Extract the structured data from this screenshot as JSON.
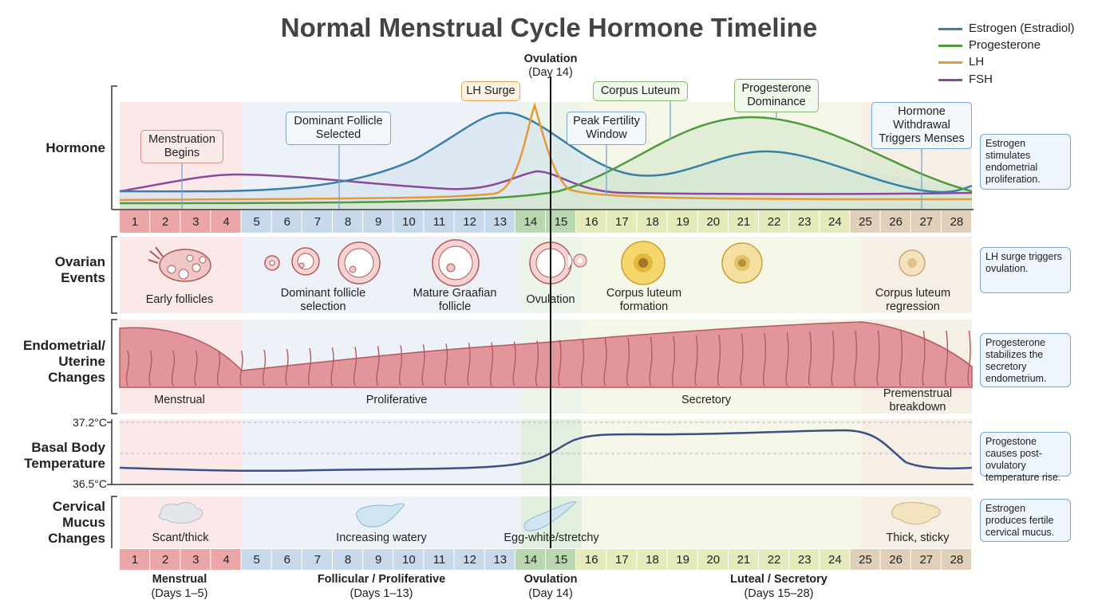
{
  "title": "Normal Menstrual Cycle Hormone Timeline",
  "legend": [
    {
      "name": "Estrogen (Estradiol)",
      "color": "#3a7fa6"
    },
    {
      "name": "Progesterone",
      "color": "#4f9a3d"
    },
    {
      "name": "LH",
      "color": "#e59a3a"
    },
    {
      "name": "FSH",
      "color": "#8a4a9c"
    }
  ],
  "ovulation_header": {
    "title": "Ovulation",
    "sub": "(Day 14)"
  },
  "row_labels": {
    "hormone": "Hormone",
    "ovarian_1": "Ovarian",
    "ovarian_2": "Events",
    "endo_1": "Endometrial/",
    "endo_2": "Uterine",
    "endo_3": "Changes",
    "bbt_1": "Basal Body",
    "bbt_2": "Temperature",
    "mucus_1": "Cervical",
    "mucus_2": "Mucus",
    "mucus_3": "Changes"
  },
  "days": [
    1,
    2,
    3,
    4,
    5,
    6,
    7,
    8,
    9,
    10,
    11,
    12,
    13,
    14,
    15,
    16,
    17,
    18,
    19,
    20,
    21,
    22,
    23,
    24,
    25,
    26,
    27,
    28
  ],
  "day_colors": {
    "menstrual": "#eba7a7",
    "follicular": "#c9d9ec",
    "ovulation": "#b8d6b0",
    "luteal": "#e4eab9",
    "premenstrual": "#e0d0ba"
  },
  "hormone_callouts": {
    "menstruation": "Menstruation Begins",
    "dominant": "Dominant Follicle Selected",
    "lh_surge": "LH Surge",
    "peak_fertility": "Peak Fertility Window",
    "corpus_luteum": "Corpus Luteum",
    "prog_dominance": "Progesterone Dominance",
    "withdrawal": "Hormone Withdrawal Triggers Menses"
  },
  "ovarian_captions": {
    "early": "Early follicles",
    "dominant": "Dominant follicle selection",
    "graafian": "Mature Graafian follicle",
    "ovulation": "Ovulation",
    "cl_formation": "Corpus luteum formation",
    "cl_regression": "Corpus luteum regression"
  },
  "endometrial_phases": {
    "menstrual": "Menstrual",
    "proliferative": "Proliferative",
    "secretory": "Secretory",
    "premenstrual": "Premenstrual breakdown"
  },
  "bbt": {
    "high_label": "37.2°C",
    "low_label": "36.5°C"
  },
  "mucus_captions": {
    "scant": "Scant/thick",
    "watery": "Increasing watery",
    "eggwhite": "Egg-white/stretchy",
    "sticky": "Thick, sticky"
  },
  "side_notes": {
    "hormone": "Estrogen stimulates endometrial proliferation.",
    "ovarian": "LH surge triggers ovulation.",
    "endo": "Progesterone stabilizes the secretory endometrium.",
    "bbt": "Progestone causes post-ovulatory temperature rise.",
    "mucus": "Estrogen produces fertile cervical mucus."
  },
  "phase_footer": [
    {
      "name": "Menstrual",
      "days": "(Days 1–5)"
    },
    {
      "name": "Follicular / Proliferative",
      "days": "(Days 1–13)"
    },
    {
      "name": "Ovulation",
      "days": "(Day 14)"
    },
    {
      "name": "Luteal / Secretory",
      "days": "(Days 15–28)"
    }
  ]
}
